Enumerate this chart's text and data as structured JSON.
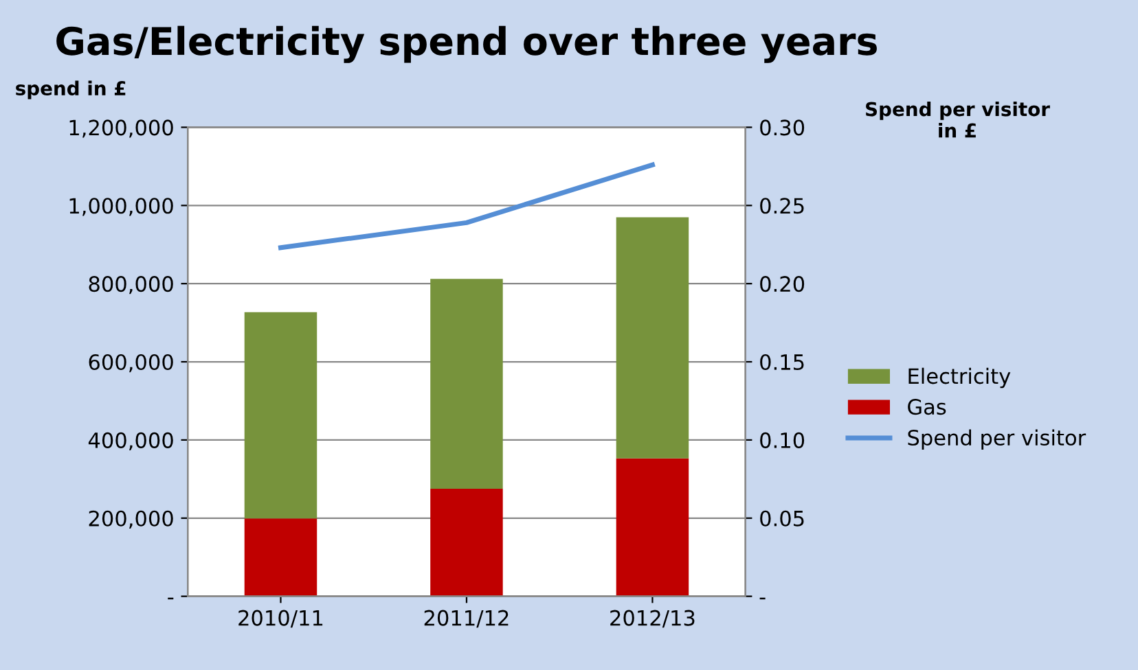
{
  "chart_data": {
    "type": "bar",
    "title": "Gas/Electricity spend over three years",
    "ylabel": "spend in £",
    "y2label": "Spend per visitor\nin £",
    "categories": [
      "2010/11",
      "2011/12",
      "2012/13"
    ],
    "stacked": true,
    "series": [
      {
        "name": "Gas",
        "color": "#c00000",
        "values": [
          199000,
          275000,
          353000
        ]
      },
      {
        "name": "Electricity",
        "color": "#77933c",
        "values": [
          528000,
          537000,
          617000
        ]
      },
      {
        "name": "Spend per visitor",
        "type": "line",
        "axis": "y2",
        "color": "#558ed5",
        "values": [
          0.223,
          0.239,
          0.276
        ]
      }
    ],
    "ylim": [
      0,
      1200000
    ],
    "yticks": [
      {
        "value": 0,
        "label": "-"
      },
      {
        "value": 200000,
        "label": "200,000"
      },
      {
        "value": 400000,
        "label": "400,000"
      },
      {
        "value": 600000,
        "label": "600,000"
      },
      {
        "value": 800000,
        "label": "800,000"
      },
      {
        "value": 1000000,
        "label": "1,000,000"
      },
      {
        "value": 1200000,
        "label": "1,200,000"
      }
    ],
    "y2lim": [
      0,
      0.3
    ],
    "y2ticks": [
      {
        "value": 0,
        "label": "-"
      },
      {
        "value": 0.05,
        "label": "0.05"
      },
      {
        "value": 0.1,
        "label": "0.10"
      },
      {
        "value": 0.15,
        "label": "0.15"
      },
      {
        "value": 0.2,
        "label": "0.20"
      },
      {
        "value": 0.25,
        "label": "0.25"
      },
      {
        "value": 0.3,
        "label": "0.30"
      }
    ],
    "grid": "y",
    "legend": "right",
    "marker": "none"
  }
}
